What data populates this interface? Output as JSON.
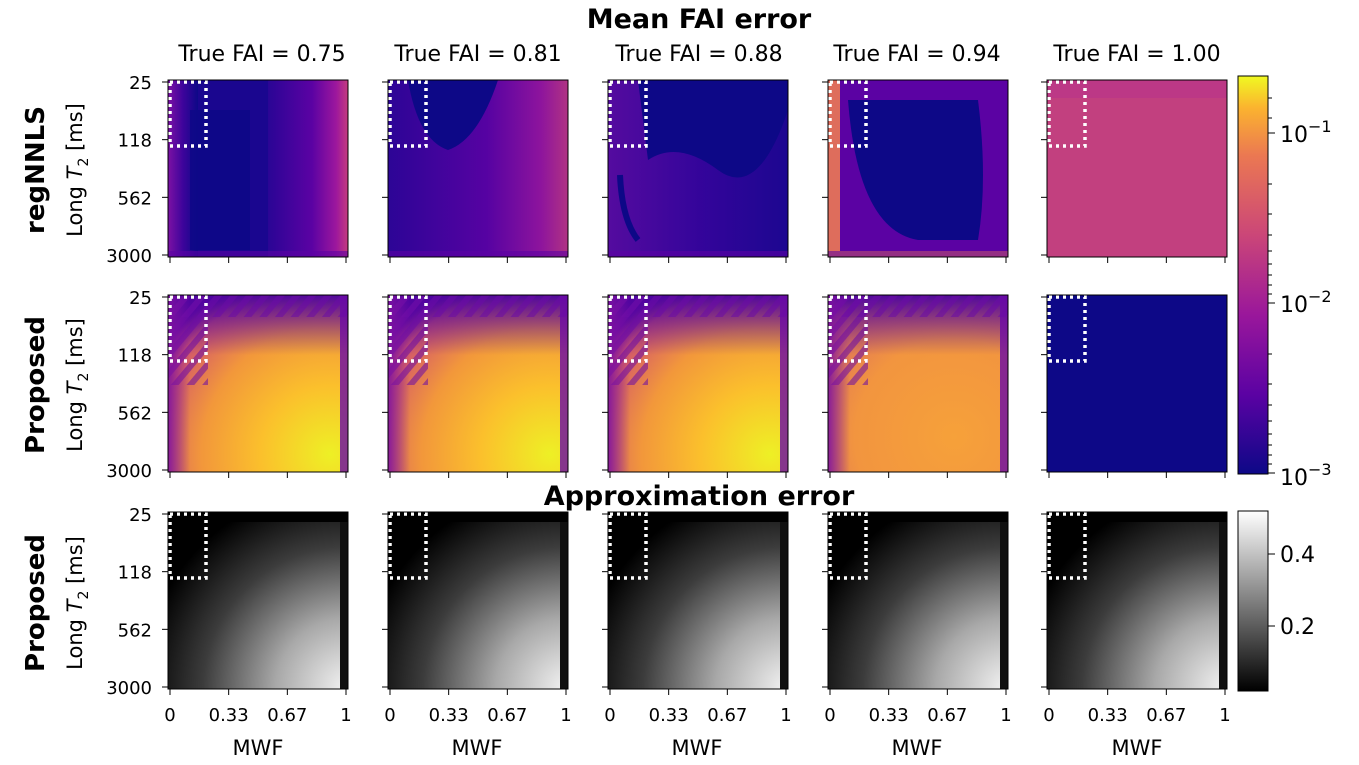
{
  "figure": {
    "title_top": "Mean FAI error",
    "title_bottom": "Approximation error"
  },
  "chart_data": {
    "type": "heatmap",
    "columns": [
      "True FAI = 0.75",
      "True FAI = 0.81",
      "True FAI = 0.88",
      "True FAI = 0.94",
      "True FAI = 1.00"
    ],
    "rows": [
      {
        "label": "regNNLS",
        "group": "Mean FAI error",
        "colorbar": "plasma-log"
      },
      {
        "label": "Proposed",
        "group": "Mean FAI error",
        "colorbar": "plasma-log"
      },
      {
        "label": "Proposed",
        "group": "Approximation error",
        "colorbar": "gray"
      }
    ],
    "ylabel": "Long T2 [ms]",
    "xlabel": "MWF",
    "xticks": [
      "0",
      "0.33",
      "0.67",
      "1"
    ],
    "yticks": [
      "25",
      "118",
      "562",
      "3000"
    ],
    "colorbar_top": {
      "scale": "log",
      "range": [
        0.001,
        0.2
      ],
      "ticks": [
        {
          "base": "10",
          "exp": "−1"
        },
        {
          "base": "10",
          "exp": "−2"
        },
        {
          "base": "10",
          "exp": "−3"
        }
      ]
    },
    "colorbar_bottom": {
      "scale": "linear",
      "range": [
        0.0,
        0.5
      ],
      "ticks": [
        "0.4",
        "0.2"
      ]
    },
    "annotation": "dotted white rectangle marks MWF 0–0.2, long T2 25–118 ms",
    "panel_patterns": [
      [
        "reg-075",
        "reg-081",
        "reg-088",
        "reg-094",
        "reg-100"
      ],
      [
        "prop-075",
        "prop-081",
        "prop-088",
        "prop-094",
        "prop-100"
      ],
      [
        "approx-075",
        "approx-081",
        "approx-088",
        "approx-094",
        "approx-100"
      ]
    ]
  }
}
